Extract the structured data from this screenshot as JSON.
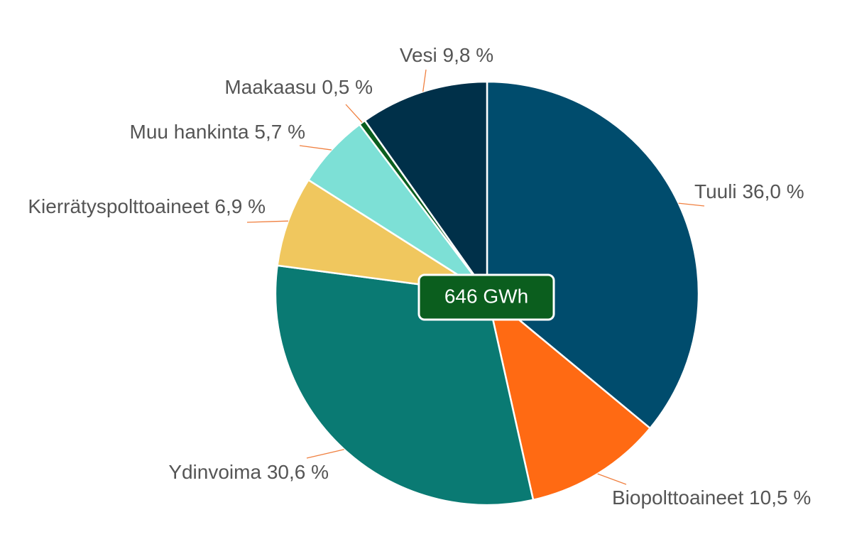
{
  "chart_data": {
    "type": "pie",
    "categories": [
      "Tuuli",
      "Biopolttoaineet",
      "Ydinvoima",
      "Kierrätyspolttoaineet",
      "Muu hankinta",
      "Maakaasu",
      "Vesi"
    ],
    "values": [
      36.0,
      10.5,
      30.6,
      6.9,
      5.7,
      0.5,
      9.8
    ],
    "value_labels": [
      "36,0 %",
      "10,5 %",
      "30,6 %",
      "6,9 %",
      "5,7 %",
      "0,5 %",
      "9,8 %"
    ],
    "colors": [
      "#004c6d",
      "#ff6a13",
      "#0a7a73",
      "#f0c75e",
      "#7de0d6",
      "#0b5e1e",
      "#003049"
    ],
    "center_label": "646 GWh"
  }
}
